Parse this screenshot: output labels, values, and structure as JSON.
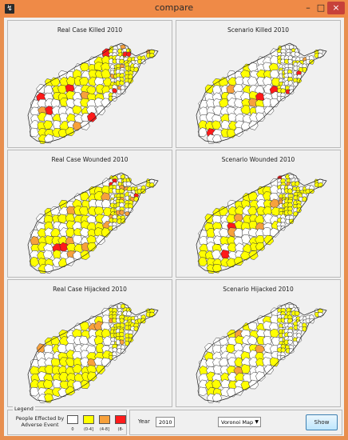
{
  "window": {
    "title": "compare",
    "minimize_glyph": "–",
    "maximize_glyph": "□",
    "close_glyph": "×",
    "icon": "matlab-figure-icon"
  },
  "panels": [
    {
      "title": "Real Case Killed 2010"
    },
    {
      "title": "Scenario Killed 2010"
    },
    {
      "title": "Real Case Wounded 2010"
    },
    {
      "title": "Scenario Wounded 2010"
    },
    {
      "title": "Real Case Hijacked 2010"
    },
    {
      "title": "Scenario Hijacked 2010"
    }
  ],
  "legend": {
    "title": "Legend",
    "label": "People Effected by Adverse Event",
    "items": [
      {
        "label": "0",
        "color": "#ffffff"
      },
      {
        "label": "(0-4]",
        "color": "#ffff00"
      },
      {
        "label": "(4-8]",
        "color": "#f7a13c"
      },
      {
        "label": "(8-",
        "color": "#ff1a1a"
      }
    ]
  },
  "controls": {
    "year_label": "Year",
    "year_value": "2010",
    "map_type": "Voronoi Map",
    "show_label": "Show"
  },
  "colors": {
    "titlebar": "#ef8a47",
    "close": "#c7413a",
    "zero": "#ffffff",
    "low": "#ffff00",
    "mid": "#f7a13c",
    "high": "#ff1a1a"
  }
}
